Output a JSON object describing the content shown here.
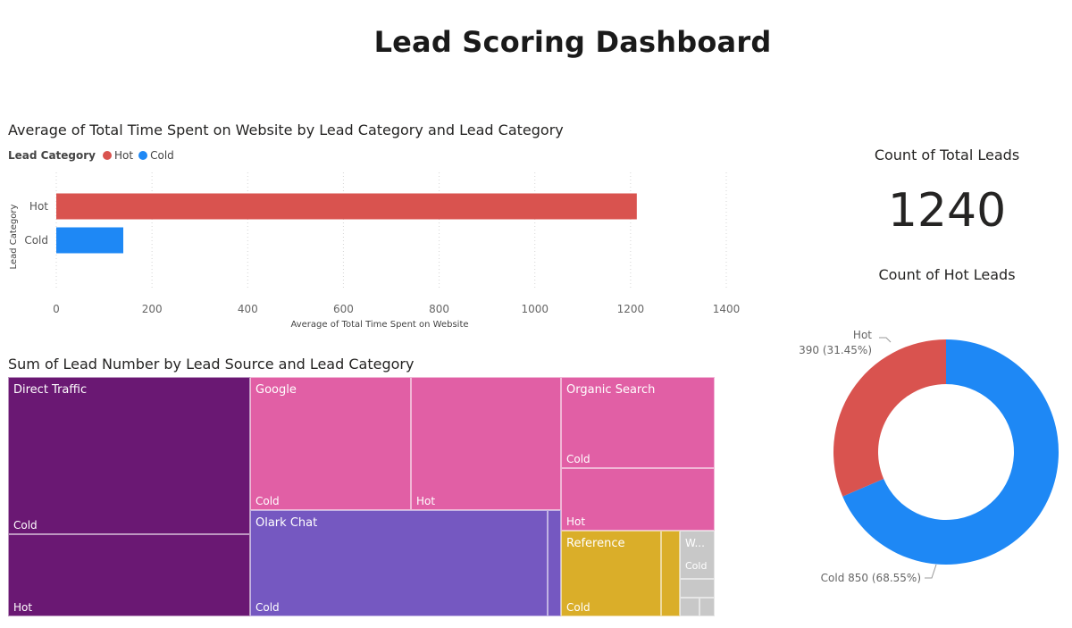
{
  "page": {
    "title": "Lead Scoring Dashboard"
  },
  "bar_visual": {
    "title": "Average of Total Time Spent on Website by Lead Category and Lead Category",
    "legend_title": "Lead Category",
    "legend": [
      {
        "name": "Hot",
        "color": "#D9534F"
      },
      {
        "name": "Cold",
        "color": "#1E88F5"
      }
    ]
  },
  "card_total": {
    "title": "Count of Total Leads",
    "value": "1240"
  },
  "donut_visual": {
    "title": "Count of Hot Leads",
    "hot_label": "Hot",
    "hot_detail": "390 (31.45%)",
    "cold_label": "Cold 850 (68.55%)"
  },
  "treemap_visual": {
    "title": "Sum of Lead Number by Lead Source and Lead Category",
    "groups": [
      {
        "name": "Direct Traffic",
        "color": "#6A1873",
        "subs": [
          "Cold",
          "Hot"
        ]
      },
      {
        "name": "Google",
        "color": "#E15FA5",
        "subs": [
          "Cold",
          "Hot"
        ]
      },
      {
        "name": "Organic Search",
        "color": "#E15FA5",
        "subs": [
          "Cold",
          "Hot"
        ]
      },
      {
        "name": "Olark Chat",
        "color": "#7558C1",
        "subs": [
          "Cold"
        ]
      },
      {
        "name": "Reference",
        "color": "#DAAE29",
        "subs": [
          "Cold"
        ]
      },
      {
        "name": "W...",
        "color": "#C8C8C8",
        "subs": [
          "Cold"
        ]
      }
    ]
  },
  "chart_data": [
    {
      "type": "bar",
      "orientation": "horizontal",
      "title": "Average of Total Time Spent on Website by Lead Category and Lead Category",
      "categories": [
        "Hot",
        "Cold"
      ],
      "values": [
        1213,
        140
      ],
      "colors": [
        "#D9534F",
        "#1E88F5"
      ],
      "xlabel": "Average of Total Time Spent on Website",
      "ylabel": "Lead Category",
      "xlim": [
        0,
        1400
      ],
      "xticks": [
        0,
        200,
        400,
        600,
        800,
        1000,
        1200,
        1400
      ],
      "grid": true,
      "legend": "top-left"
    },
    {
      "type": "pie",
      "donut": true,
      "title": "Count of Hot Leads",
      "labels": [
        "Hot",
        "Cold"
      ],
      "values": [
        390,
        850
      ],
      "percents": [
        31.45,
        68.55
      ],
      "colors": [
        "#D9534F",
        "#1E88F5"
      ]
    },
    {
      "type": "treemap",
      "title": "Sum of Lead Number by Lead Source and Lead Category",
      "groups": [
        "Direct Traffic",
        "Google",
        "Organic Search",
        "Olark Chat",
        "Reference",
        "W..."
      ],
      "sub_categories": [
        "Cold",
        "Hot"
      ]
    }
  ]
}
